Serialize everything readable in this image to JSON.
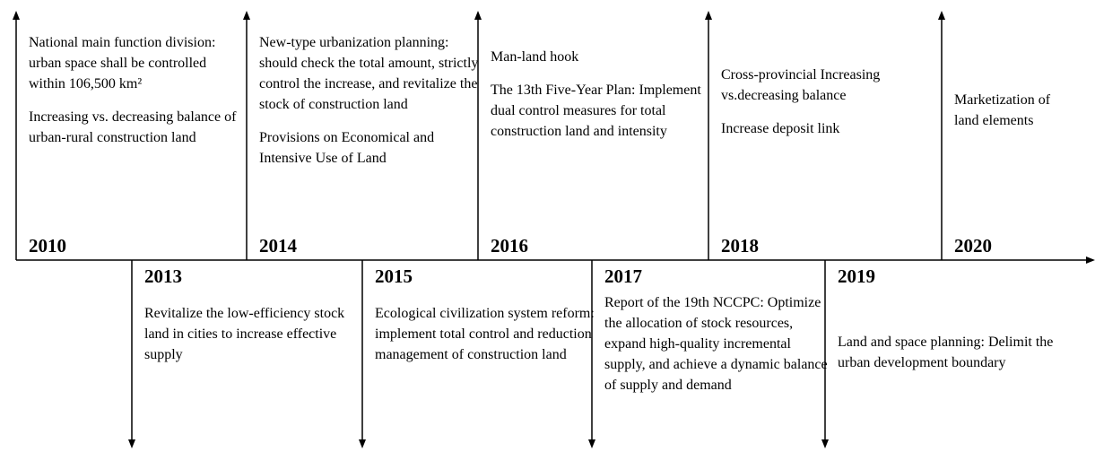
{
  "top_events": [
    {
      "year": "2010",
      "paragraphs": [
        "National main function division: urban space shall be controlled within 106,500 km²",
        "Increasing vs. decreasing balance of urban-rural construction land"
      ]
    },
    {
      "year": "2014",
      "paragraphs": [
        "New-type urbanization planning: should check the total amount, strictly control the increase, and revitalize the stock of construction land",
        "Provisions on Economical and Intensive Use of Land"
      ]
    },
    {
      "year": "2016",
      "paragraphs": [
        "Man-land hook",
        "The 13th Five-Year Plan: Implement dual control measures for total construction land and intensity"
      ]
    },
    {
      "year": "2018",
      "paragraphs": [
        "Cross-provincial Increasing vs.decreasing balance",
        "Increase deposit link"
      ]
    },
    {
      "year": "2020",
      "paragraphs": [
        "Marketization of land elements"
      ]
    }
  ],
  "bottom_events": [
    {
      "year": "2013",
      "paragraphs": [
        "Revitalize the low-efficiency stock land in cities to increase effective supply"
      ]
    },
    {
      "year": "2015",
      "paragraphs": [
        "Ecological civilization system reform: implement total control and reduction management of construction land"
      ]
    },
    {
      "year": "2017",
      "paragraphs": [
        "Report of the 19th NCCPC: Optimize the allocation of stock resources, expand high-quality incremental supply, and achieve a dynamic balance of supply and demand"
      ]
    },
    {
      "year": "2019",
      "paragraphs": [
        "Land and space planning: Delimit the urban development boundary"
      ]
    }
  ]
}
